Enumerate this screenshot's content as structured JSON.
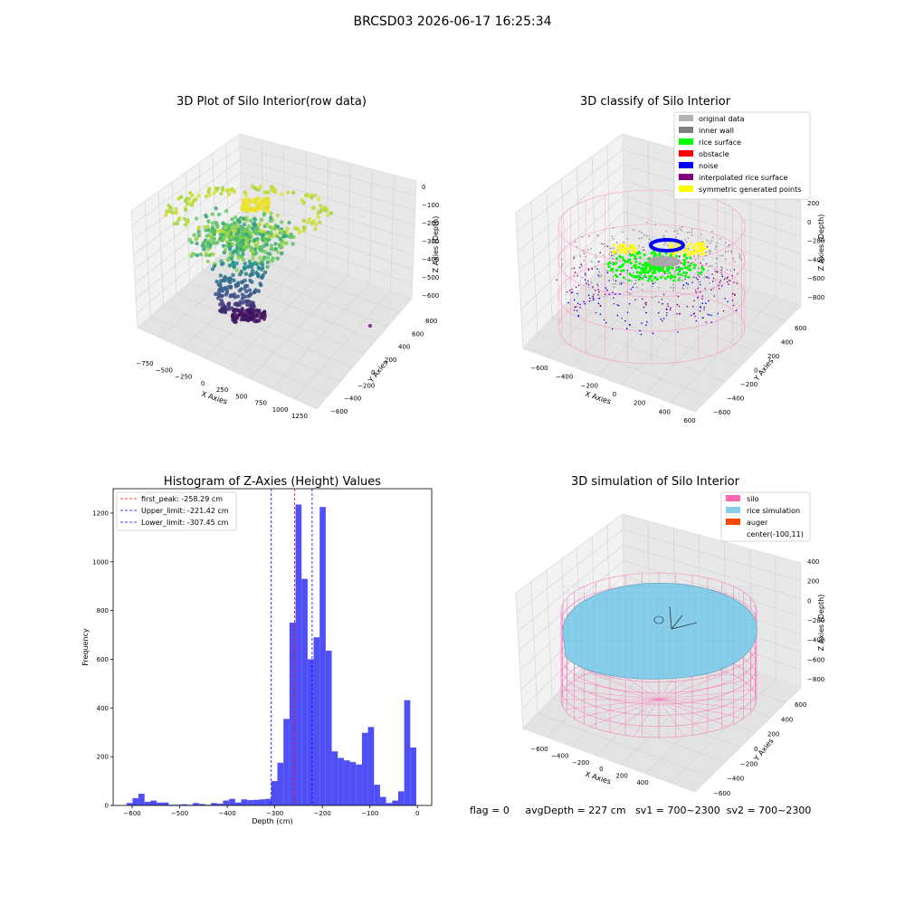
{
  "suptitle": "BRCSD03 2026-06-17 16:25:34",
  "status": {
    "flag": "flag = 0",
    "avg_depth": "avgDepth = 227 cm",
    "sv1": "sv1 = 700~2300",
    "sv2": "sv2 = 700~2300"
  },
  "chart_data": [
    {
      "type": "scatter",
      "subtype": "3d",
      "title": "3D Plot of Silo Interior(row data)",
      "xlabel": "X Axies",
      "ylabel": "Y Axies",
      "zlabel": "Z Axies (Depth)",
      "x_ticks": [
        "−750",
        "−500",
        "−250",
        "0",
        "250",
        "500",
        "750",
        "1000",
        "1250"
      ],
      "y_ticks": [
        "−600",
        "−400",
        "−200",
        "0",
        "200",
        "400",
        "600",
        "800"
      ],
      "z_ticks": [
        "−600",
        "−500",
        "−400",
        "−300",
        "−200",
        "−100",
        "0"
      ],
      "colormap": "viridis",
      "grid": true
    },
    {
      "type": "scatter",
      "subtype": "3d",
      "title": "3D classify of Silo Interior",
      "xlabel": "X Axies",
      "ylabel": "Y Axies",
      "zlabel": "Z Axies (Depth)",
      "x_ticks": [
        "−600",
        "−400",
        "−200",
        "0",
        "200",
        "400",
        "600"
      ],
      "y_ticks": [
        "−600",
        "−400",
        "−200",
        "0",
        "200",
        "400",
        "600"
      ],
      "z_ticks": [
        "−800",
        "−600",
        "−400",
        "−200",
        "0",
        "200"
      ],
      "legend_position": "top-right",
      "legend": [
        {
          "label": "original data",
          "color": "#b3b3b3"
        },
        {
          "label": "inner wall",
          "color": "#808080"
        },
        {
          "label": "rice surface",
          "color": "#00ff00"
        },
        {
          "label": "obstacle",
          "color": "#ff0000"
        },
        {
          "label": "noise",
          "color": "#0000ff"
        },
        {
          "label": "interpolated rice surface",
          "color": "#800080"
        },
        {
          "label": "symmetric generated points",
          "color": "#ffff00"
        }
      ],
      "grid": true
    },
    {
      "type": "bar",
      "subtype": "histogram",
      "title": "Histogram of Z-Axies (Height) Values",
      "xlabel": "Depth (cm)",
      "ylabel": "Frequency",
      "xlim": [
        -640,
        30
      ],
      "ylim": [
        0,
        1300
      ],
      "x_ticks": [
        "−600",
        "−500",
        "−400",
        "−300",
        "−200",
        "−100",
        "0"
      ],
      "x_tick_values": [
        -600,
        -500,
        -400,
        -300,
        -200,
        -100,
        0
      ],
      "y_ticks": [
        "0",
        "200",
        "400",
        "600",
        "800",
        "1000",
        "1200"
      ],
      "y_tick_values": [
        0,
        200,
        400,
        600,
        800,
        1000,
        1200
      ],
      "bar_color": "#4f4ff5",
      "bin_start": -612,
      "bin_width": 12.7,
      "values": [
        10,
        30,
        48,
        15,
        20,
        12,
        12,
        3,
        3,
        5,
        3,
        10,
        6,
        3,
        10,
        7,
        20,
        27,
        12,
        25,
        22,
        23,
        25,
        27,
        100,
        175,
        355,
        750,
        1235,
        930,
        600,
        690,
        1225,
        635,
        222,
        195,
        185,
        178,
        168,
        298,
        322,
        85,
        35,
        10,
        20,
        58,
        432,
        238
      ],
      "vlines": [
        {
          "label": "first_peak: -258.29 cm",
          "x": -258.29,
          "color": "#ff0000"
        },
        {
          "label": "Upper_limit: -221.42 cm",
          "x": -221.42,
          "color": "#0000ff"
        },
        {
          "label": "Lower_limit: -307.45 cm",
          "x": -307.45,
          "color": "#0000ff"
        }
      ],
      "legend_position": "top-left",
      "grid": false
    },
    {
      "type": "other",
      "subtype": "3d-surface",
      "title": "3D simulation of Silo Interior",
      "xlabel": "X Axies",
      "ylabel": "Y Axies",
      "zlabel": "Z Axies (Depth)",
      "x_ticks": [
        "−600",
        "−400",
        "−200",
        "0",
        "200",
        "400"
      ],
      "y_ticks": [
        "−600",
        "−400",
        "−200",
        "0",
        "200",
        "400",
        "600"
      ],
      "z_ticks": [
        "−800",
        "−600",
        "−400",
        "−200",
        "0",
        "200",
        "400"
      ],
      "legend_position": "top-right",
      "legend": [
        {
          "label": "silo",
          "color": "#ff69b4"
        },
        {
          "label": "rice simulation",
          "color": "#87ceeb"
        },
        {
          "label": "auger",
          "color": "#ff4500"
        },
        {
          "label": "center(-100,11)",
          "color": "none"
        }
      ],
      "grid": true
    }
  ]
}
